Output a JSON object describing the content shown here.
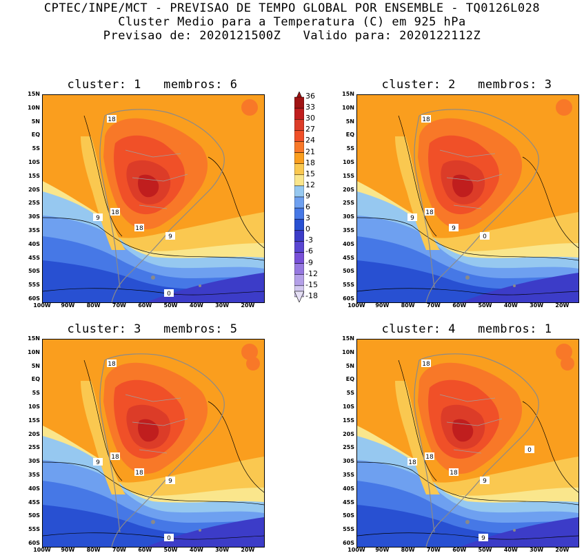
{
  "header": {
    "line1": "CPTEC/INPE/MCT - PREVISAO DE TEMPO GLOBAL POR ENSEMBLE - TQ0126L028",
    "line2": "Cluster Medio para a Temperatura (C) em 925 hPa",
    "line3": "Previsao de: 2020121500Z   Valido para: 2020122112Z"
  },
  "panels": [
    {
      "title": "cluster: 1   membros: 6",
      "contour_labels": [
        "18",
        "18",
        "18",
        "9",
        "9",
        "0"
      ]
    },
    {
      "title": "cluster: 2   membros: 3",
      "contour_labels": [
        "18",
        "18",
        "9",
        "9",
        "0"
      ]
    },
    {
      "title": "cluster: 3   membros: 5",
      "contour_labels": [
        "18",
        "18",
        "18",
        "9",
        "9",
        "0"
      ]
    },
    {
      "title": "cluster: 4   membros: 1",
      "contour_labels": [
        "18",
        "18",
        "18",
        "18",
        "9",
        "9",
        "0"
      ]
    }
  ],
  "y_ticks": [
    "15N",
    "10N",
    "5N",
    "EQ",
    "5S",
    "10S",
    "15S",
    "20S",
    "25S",
    "30S",
    "35S",
    "40S",
    "45S",
    "50S",
    "55S",
    "60S"
  ],
  "x_ticks": [
    "100W",
    "90W",
    "80W",
    "70W",
    "60W",
    "50W",
    "40W",
    "30W",
    "20W"
  ],
  "colorbar": {
    "labels": [
      "36",
      "33",
      "30",
      "27",
      "24",
      "21",
      "18",
      "15",
      "12",
      "9",
      "6",
      "3",
      "0",
      "-3",
      "-6",
      "-9",
      "-12",
      "-15",
      "-18"
    ],
    "colors": [
      "#a01414",
      "#c01e1e",
      "#dc3c28",
      "#f05028",
      "#f87828",
      "#fa9e1e",
      "#fac850",
      "#fae68c",
      "#96c8f0",
      "#6ea0f0",
      "#4678e6",
      "#2850d2",
      "#3c3cc8",
      "#5a46d2",
      "#7850d8",
      "#9678e0",
      "#b4a0e8",
      "#d2c8f0"
    ],
    "top_color": "#a01414",
    "bottom_color": "#e6e0f5"
  }
}
